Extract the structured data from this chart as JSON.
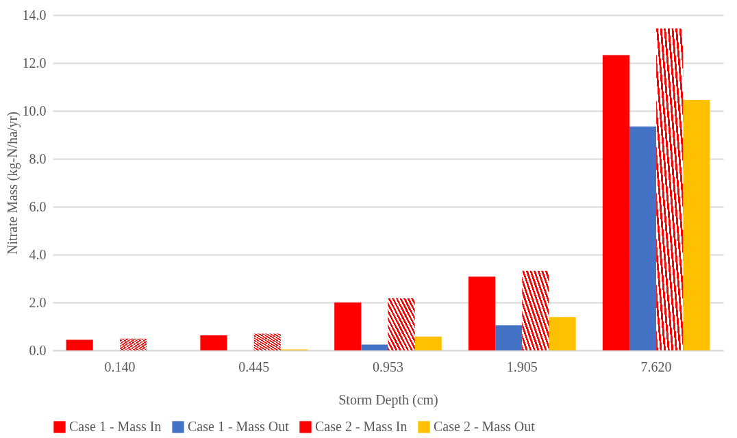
{
  "chart_data": {
    "type": "bar",
    "xlabel": "Storm Depth (cm)",
    "ylabel": "Nitrate Mass (kg-N/ha/yr)",
    "categories": [
      "0.140",
      "0.445",
      "0.953",
      "1.905",
      "7.620"
    ],
    "series": [
      {
        "name": "Case 1 - Mass In",
        "color": "#ff0000",
        "values": [
          0.44,
          0.63,
          2.0,
          3.08,
          12.33
        ]
      },
      {
        "name": "Case 1 - Mass Out",
        "color": "#4472c4",
        "values": [
          0,
          0,
          0.24,
          1.05,
          9.35
        ]
      },
      {
        "name": "Case 2 - Mass In",
        "color": "#ff0000",
        "values": [
          0.49,
          0.7,
          2.18,
          3.32,
          13.44
        ]
      },
      {
        "name": "Case 2 - Mass Out",
        "color": "#ffc000",
        "values": [
          0,
          0.04,
          0.58,
          1.39,
          10.46
        ]
      }
    ],
    "ylim": [
      0,
      14
    ],
    "yticks": [
      {
        "value": 0,
        "label": "0.0"
      },
      {
        "value": 2,
        "label": "2.0"
      },
      {
        "value": 4,
        "label": "4.0"
      },
      {
        "value": 6,
        "label": "6.0"
      },
      {
        "value": 8,
        "label": "8.0"
      },
      {
        "value": 10,
        "label": "10.0"
      },
      {
        "value": 12,
        "label": "12.0"
      },
      {
        "value": 14,
        "label": "14.0"
      }
    ],
    "grid": "y",
    "legend": "bottom"
  }
}
